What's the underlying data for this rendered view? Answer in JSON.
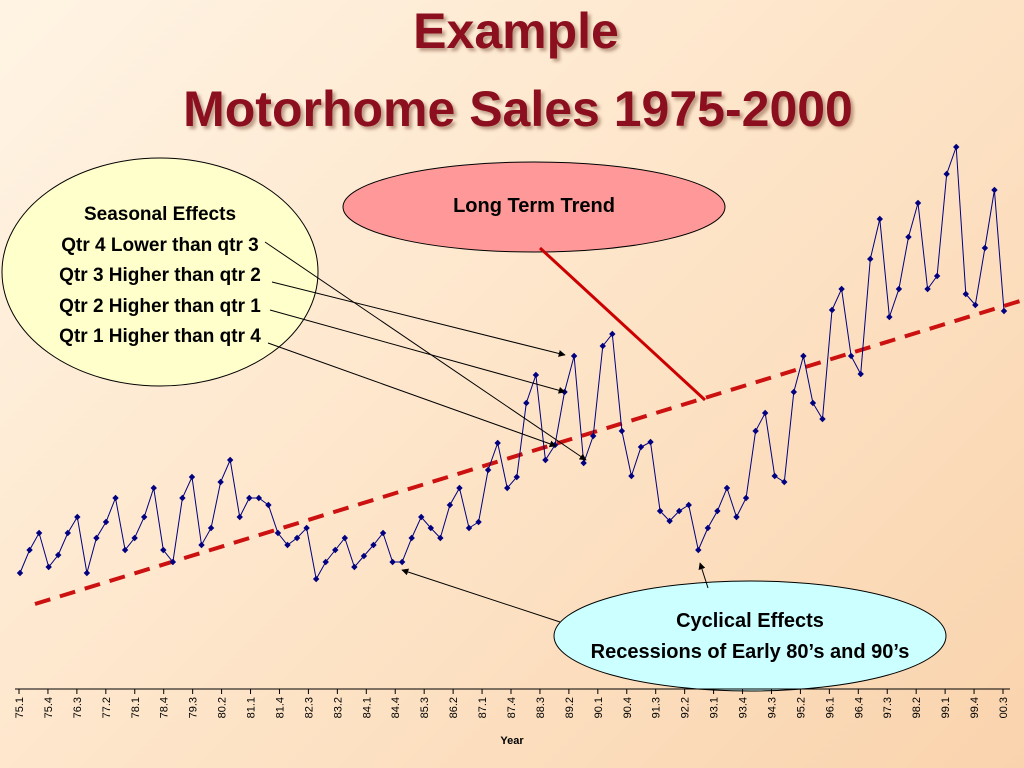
{
  "title": {
    "line1": "Example",
    "line2": "Motorhome Sales 1975-2000"
  },
  "annotations": {
    "seasonal": {
      "heading": "Seasonal Effects",
      "items": [
        "Qtr 4 Lower than qtr 3",
        "Qtr 3 Higher than qtr 2",
        "Qtr 2 Higher than qtr 1",
        "Qtr 1 Higher than qtr 4"
      ]
    },
    "long_term": {
      "label": "Long Term Trend"
    },
    "cyclical": {
      "line1": "Cyclical Effects",
      "line2": "Recessions of Early 80’s and 90’s"
    }
  },
  "colors": {
    "title": "#8b0f1e",
    "series": "#000080",
    "trend": "#cc1111",
    "seasonal_fill": "#ffffcc",
    "long_term_fill": "#ff9999",
    "cyclical_fill": "#ccffff",
    "arrow": "#000000",
    "trend_pointer": "#cc0000"
  },
  "chart_data": {
    "type": "line",
    "title": "",
    "xlabel": "Year",
    "ylabel": "",
    "grid": false,
    "x_tick_labels": [
      "75.1",
      "75.4",
      "76.3",
      "77.2",
      "78.1",
      "78.4",
      "79.3",
      "80.2",
      "81.1",
      "81.4",
      "82.3",
      "83.2",
      "84.1",
      "84.4",
      "85.3",
      "86.2",
      "87.1",
      "87.4",
      "88.3",
      "89.2",
      "90.1",
      "90.4",
      "91.3",
      "92.2",
      "93.1",
      "93.4",
      "94.3",
      "95.2",
      "96.1",
      "96.4",
      "97.3",
      "98.2",
      "99.1",
      "99.4",
      "00.3"
    ],
    "series": [
      {
        "values": [
          573,
          550,
          533,
          567,
          555,
          533,
          517,
          573,
          538,
          522,
          498,
          550,
          538,
          517,
          488,
          550,
          562,
          498,
          477,
          545,
          528,
          482,
          460,
          517,
          498,
          498,
          505,
          533,
          545,
          538,
          528,
          579,
          562,
          550,
          538,
          567,
          556,
          545,
          533,
          562,
          562,
          538,
          517,
          528,
          538,
          505,
          488,
          528,
          522,
          470,
          443,
          488,
          477,
          403,
          375,
          460,
          445,
          392,
          356,
          463,
          436,
          346,
          334,
          431,
          476,
          447,
          442,
          511,
          521,
          511,
          505,
          550,
          528,
          511,
          488,
          517,
          498,
          431,
          413,
          476,
          482,
          392,
          356,
          403,
          419,
          310,
          289,
          356,
          374,
          259,
          219,
          317,
          289,
          237,
          203,
          289,
          276,
          174,
          147,
          294,
          305,
          248,
          190,
          311
        ]
      },
      {
        "name": "",
        "values": [
          604,
          301
        ]
      }
    ]
  }
}
